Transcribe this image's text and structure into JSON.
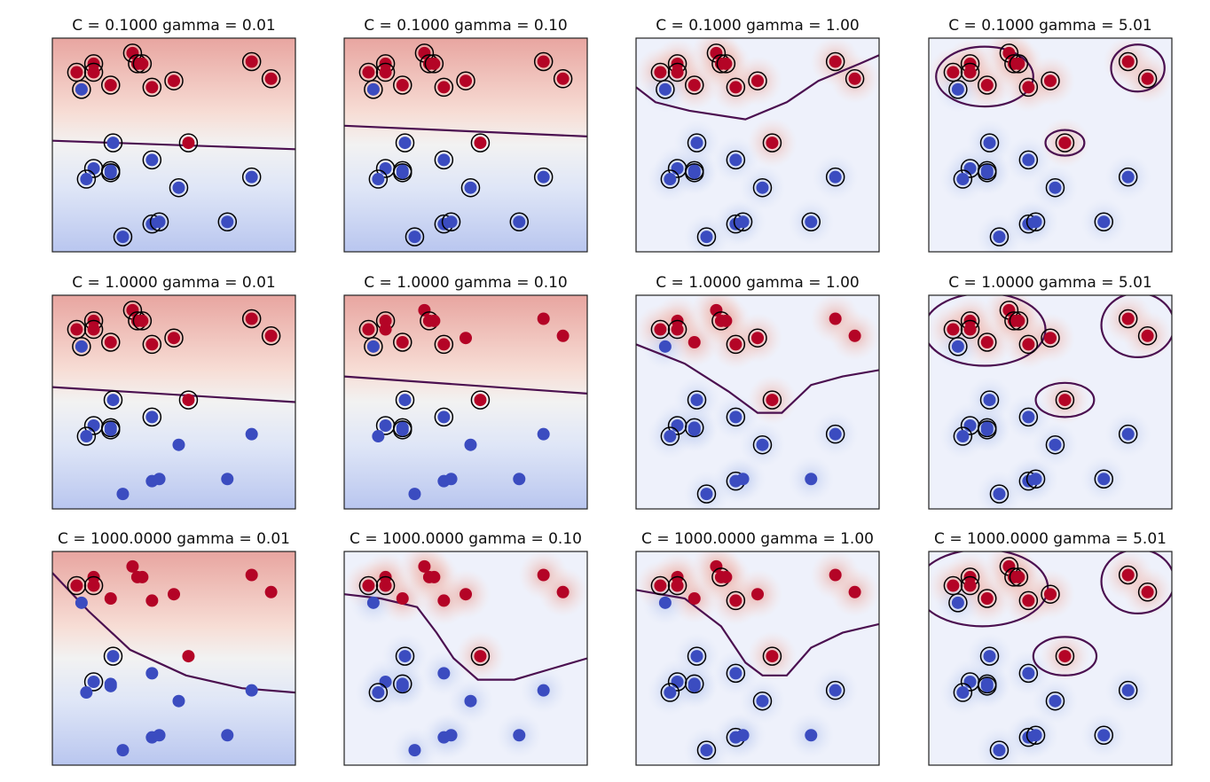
{
  "figure": {
    "description_none": ""
  },
  "colors": {
    "positive": "#b40426",
    "negative": "#3b4cc0",
    "boundary": "#4b1050",
    "frame": "#222222",
    "sv_ring": "#000000"
  },
  "chart_data": [
    {
      "type": "scatter",
      "title": "C = 0.1000 gamma = 0.01",
      "C": 0.1,
      "gamma": 0.01,
      "row": 0,
      "col": 0,
      "sv": "all",
      "boundary": [
        [
          0,
          0.52
        ],
        [
          1,
          0.48
        ]
      ],
      "bg": "linear"
    },
    {
      "type": "scatter",
      "title": "C = 0.1000 gamma = 0.10",
      "C": 0.1,
      "gamma": 0.1,
      "row": 0,
      "col": 1,
      "sv": "all",
      "boundary": [
        [
          0,
          0.59
        ],
        [
          1,
          0.54
        ]
      ],
      "bg": "linear"
    },
    {
      "type": "scatter",
      "title": "C = 0.1000 gamma = 1.00",
      "C": 0.1,
      "gamma": 1.0,
      "row": 0,
      "col": 2,
      "sv": "all",
      "boundary": [
        [
          0,
          0.77
        ],
        [
          0.08,
          0.7
        ],
        [
          0.22,
          0.66
        ],
        [
          0.45,
          0.62
        ],
        [
          0.62,
          0.7
        ],
        [
          0.75,
          0.8
        ],
        [
          0.92,
          0.88
        ],
        [
          1,
          0.92
        ]
      ],
      "bg": "rbf"
    },
    {
      "type": "scatter",
      "title": "C = 0.1000 gamma = 5.01",
      "C": 0.1,
      "gamma": 5.01,
      "row": 0,
      "col": 3,
      "sv": "all",
      "islands": [
        [
          0.23,
          0.82,
          0.2,
          0.14
        ],
        [
          0.86,
          0.86,
          0.11,
          0.11
        ],
        [
          0.56,
          0.51,
          0.08,
          0.06
        ]
      ],
      "bg": "rbf"
    },
    {
      "type": "scatter",
      "title": "C = 1.0000 gamma = 0.01",
      "C": 1.0,
      "gamma": 0.01,
      "row": 1,
      "col": 0,
      "sv": [
        0,
        1,
        2,
        3,
        4,
        5,
        6,
        7,
        8,
        9,
        10,
        11,
        12,
        13,
        14,
        15,
        16,
        17,
        18
      ],
      "boundary": [
        [
          0,
          0.57
        ],
        [
          1,
          0.5
        ]
      ],
      "bg": "linear"
    },
    {
      "type": "scatter",
      "title": "C = 1.0000 gamma = 0.10",
      "C": 1.0,
      "gamma": 0.1,
      "row": 1,
      "col": 1,
      "sv": [
        0,
        1,
        3,
        5,
        7,
        11,
        12,
        13,
        14,
        16,
        17,
        18
      ],
      "boundary": [
        [
          0,
          0.62
        ],
        [
          1,
          0.54
        ]
      ],
      "bg": "linear"
    },
    {
      "type": "scatter",
      "title": "C = 1.0000 gamma = 1.00",
      "C": 1.0,
      "gamma": 1.0,
      "row": 1,
      "col": 2,
      "sv": [
        0,
        2,
        5,
        7,
        8,
        11,
        13,
        14,
        15,
        16,
        18,
        19,
        20,
        21,
        22
      ],
      "boundary": [
        [
          0,
          0.77
        ],
        [
          0.2,
          0.68
        ],
        [
          0.38,
          0.55
        ],
        [
          0.5,
          0.45
        ],
        [
          0.6,
          0.45
        ],
        [
          0.72,
          0.58
        ],
        [
          0.85,
          0.62
        ],
        [
          1,
          0.65
        ]
      ],
      "bg": "rbf"
    },
    {
      "type": "scatter",
      "title": "C = 1.0000 gamma = 5.01",
      "C": 1.0,
      "gamma": 5.01,
      "row": 1,
      "col": 3,
      "sv": "all",
      "islands": [
        [
          0.23,
          0.84,
          0.25,
          0.17
        ],
        [
          0.86,
          0.86,
          0.15,
          0.15
        ],
        [
          0.56,
          0.51,
          0.12,
          0.08
        ]
      ],
      "bg": "rbf"
    },
    {
      "type": "scatter",
      "title": "C = 1000.0000 gamma = 0.01",
      "C": 1000.0,
      "gamma": 0.01,
      "row": 2,
      "col": 0,
      "sv": [
        0,
        2,
        13,
        14
      ],
      "boundary": [
        [
          0,
          0.9
        ],
        [
          0.15,
          0.72
        ],
        [
          0.32,
          0.54
        ],
        [
          0.55,
          0.42
        ],
        [
          0.78,
          0.36
        ],
        [
          1,
          0.34
        ]
      ],
      "bg": "linear"
    },
    {
      "type": "scatter",
      "title": "C = 1000.0000 gamma = 0.10",
      "C": 1000.0,
      "gamma": 0.1,
      "row": 2,
      "col": 1,
      "sv": [
        0,
        2,
        11,
        13,
        15,
        16
      ],
      "boundary": [
        [
          0,
          0.8
        ],
        [
          0.15,
          0.78
        ],
        [
          0.3,
          0.74
        ],
        [
          0.38,
          0.62
        ],
        [
          0.45,
          0.5
        ],
        [
          0.55,
          0.4
        ],
        [
          0.7,
          0.4
        ],
        [
          0.85,
          0.45
        ],
        [
          1,
          0.5
        ]
      ],
      "bg": "rbf"
    },
    {
      "type": "scatter",
      "title": "C = 1000.0000 gamma = 1.00",
      "C": 1000.0,
      "gamma": 1.0,
      "row": 2,
      "col": 2,
      "sv": [
        0,
        2,
        5,
        7,
        11,
        13,
        14,
        15,
        16,
        18,
        19,
        20,
        21,
        22
      ],
      "boundary": [
        [
          0,
          0.82
        ],
        [
          0.2,
          0.78
        ],
        [
          0.35,
          0.65
        ],
        [
          0.45,
          0.48
        ],
        [
          0.52,
          0.42
        ],
        [
          0.62,
          0.42
        ],
        [
          0.72,
          0.55
        ],
        [
          0.85,
          0.62
        ],
        [
          1,
          0.66
        ]
      ],
      "bg": "rbf"
    },
    {
      "type": "scatter",
      "title": "C = 1000.0000 gamma = 5.01",
      "C": 1000.0,
      "gamma": 5.01,
      "row": 2,
      "col": 3,
      "sv": "all",
      "islands": [
        [
          0.22,
          0.83,
          0.27,
          0.18
        ],
        [
          0.86,
          0.86,
          0.15,
          0.15
        ],
        [
          0.56,
          0.51,
          0.13,
          0.09
        ]
      ],
      "bg": "rbf"
    }
  ],
  "points": {
    "positive": [
      [
        0.1,
        0.84
      ],
      [
        0.17,
        0.88
      ],
      [
        0.17,
        0.84
      ],
      [
        0.24,
        0.78
      ],
      [
        0.33,
        0.93
      ],
      [
        0.35,
        0.88
      ],
      [
        0.37,
        0.88
      ],
      [
        0.41,
        0.77
      ],
      [
        0.5,
        0.8
      ],
      [
        0.82,
        0.89
      ],
      [
        0.9,
        0.81
      ],
      [
        0.56,
        0.51
      ]
    ],
    "negative": [
      [
        0.12,
        0.76
      ],
      [
        0.25,
        0.51
      ],
      [
        0.17,
        0.39
      ],
      [
        0.14,
        0.34
      ],
      [
        0.24,
        0.38
      ],
      [
        0.24,
        0.37
      ],
      [
        0.41,
        0.43
      ],
      [
        0.52,
        0.3
      ],
      [
        0.82,
        0.35
      ],
      [
        0.29,
        0.07
      ],
      [
        0.41,
        0.13
      ],
      [
        0.44,
        0.14
      ],
      [
        0.72,
        0.14
      ]
    ]
  }
}
